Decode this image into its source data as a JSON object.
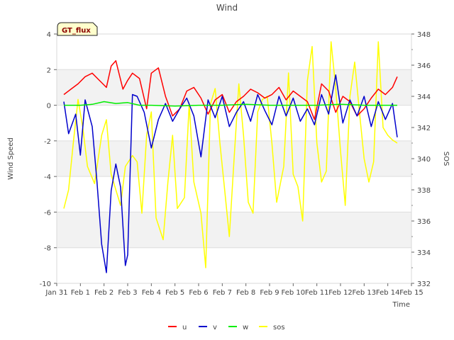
{
  "chart_data": {
    "type": "line",
    "title": "Wind",
    "badge": "GT_flux",
    "xlabel": "Time",
    "ylabel": "Wind Speed",
    "y2label": "SOS",
    "x_ticks": [
      "Jan 31",
      "Feb 1",
      "Feb 2",
      "Feb 3",
      "Feb 4",
      "Feb 5",
      "Feb 6",
      "Feb 7",
      "Feb 8",
      "Feb 9",
      "Feb 10",
      "Feb 11",
      "Feb 12",
      "Feb 13",
      "Feb 14",
      "Feb 15"
    ],
    "xlim": [
      0,
      15
    ],
    "ylim": [
      -10,
      4
    ],
    "y_ticks": [
      "-10",
      "-8",
      "-6",
      "-4",
      "-2",
      "0",
      "2",
      "4"
    ],
    "y2lim": [
      332,
      348
    ],
    "y2_ticks": [
      "332",
      "334",
      "336",
      "338",
      "340",
      "342",
      "344",
      "346",
      "348"
    ],
    "colors": {
      "u": "#ff0000",
      "v": "#0000cc",
      "w": "#00ee00",
      "sos": "#ffff00"
    },
    "legend": [
      "u",
      "v",
      "w",
      "sos"
    ],
    "series": [
      {
        "name": "u",
        "axis": "left",
        "x": [
          0.3,
          0.6,
          0.9,
          1.2,
          1.5,
          1.8,
          2.1,
          2.3,
          2.5,
          2.8,
          3.0,
          3.2,
          3.5,
          3.8,
          4.0,
          4.3,
          4.6,
          4.9,
          5.2,
          5.5,
          5.8,
          6.1,
          6.4,
          6.7,
          7.0,
          7.3,
          7.6,
          7.9,
          8.2,
          8.5,
          8.8,
          9.1,
          9.4,
          9.7,
          10.0,
          10.3,
          10.6,
          10.9,
          11.2,
          11.5,
          11.8,
          12.1,
          12.4,
          12.7,
          13.0,
          13.3,
          13.6,
          13.9,
          14.2,
          14.4
        ],
        "values": [
          0.6,
          0.9,
          1.2,
          1.6,
          1.8,
          1.4,
          1.0,
          2.2,
          2.5,
          0.9,
          1.4,
          1.8,
          1.5,
          -0.2,
          1.8,
          2.1,
          0.5,
          -0.6,
          -0.2,
          0.8,
          1.0,
          0.4,
          -0.5,
          0.3,
          0.6,
          -0.4,
          0.2,
          0.5,
          0.9,
          0.7,
          0.4,
          0.6,
          1.0,
          0.3,
          0.8,
          0.5,
          0.2,
          -0.8,
          1.2,
          0.8,
          -0.4,
          0.5,
          0.2,
          -0.6,
          -0.2,
          0.4,
          0.9,
          0.6,
          1.0,
          1.6
        ]
      },
      {
        "name": "v",
        "axis": "left",
        "x": [
          0.3,
          0.5,
          0.8,
          1.0,
          1.2,
          1.5,
          1.7,
          1.9,
          2.1,
          2.3,
          2.5,
          2.7,
          2.9,
          3.0,
          3.2,
          3.4,
          3.7,
          4.0,
          4.3,
          4.6,
          4.9,
          5.2,
          5.5,
          5.8,
          6.1,
          6.4,
          6.7,
          7.0,
          7.3,
          7.6,
          7.9,
          8.2,
          8.5,
          8.8,
          9.1,
          9.4,
          9.7,
          10.0,
          10.3,
          10.6,
          10.9,
          11.2,
          11.5,
          11.8,
          12.1,
          12.4,
          12.7,
          13.0,
          13.3,
          13.6,
          13.9,
          14.2,
          14.4
        ],
        "values": [
          0.2,
          -1.6,
          -0.5,
          -2.8,
          0.3,
          -1.2,
          -4.3,
          -7.8,
          -9.4,
          -4.8,
          -3.3,
          -4.6,
          -9.0,
          -8.4,
          0.6,
          0.5,
          -0.4,
          -2.4,
          -0.8,
          0.1,
          -0.9,
          -0.2,
          0.4,
          -0.6,
          -2.9,
          0.3,
          -0.7,
          0.5,
          -1.2,
          -0.4,
          0.2,
          -0.9,
          0.6,
          -0.3,
          -1.1,
          0.5,
          -0.6,
          0.4,
          -0.9,
          -0.2,
          -1.1,
          0.6,
          -0.5,
          1.7,
          -1.0,
          0.3,
          -0.6,
          0.5,
          -1.2,
          0.2,
          -0.8,
          0.1,
          -1.8
        ]
      },
      {
        "name": "w",
        "axis": "left",
        "x": [
          0.3,
          1.0,
          1.5,
          2.0,
          2.5,
          3.0,
          3.5,
          4.0,
          5.0,
          6.0,
          7.0,
          8.0,
          9.0,
          10.0,
          11.0,
          12.0,
          13.0,
          14.0,
          14.4
        ],
        "values": [
          0.0,
          0.0,
          0.05,
          0.2,
          0.1,
          0.15,
          0.0,
          0.0,
          -0.05,
          0.0,
          0.0,
          0.05,
          0.0,
          0.0,
          0.0,
          0.05,
          0.0,
          0.0,
          0.0
        ]
      },
      {
        "name": "sos",
        "axis": "right",
        "x": [
          0.3,
          0.5,
          0.7,
          0.9,
          1.1,
          1.3,
          1.6,
          1.9,
          2.1,
          2.3,
          2.5,
          2.7,
          2.9,
          3.2,
          3.4,
          3.6,
          3.8,
          4.0,
          4.2,
          4.5,
          4.7,
          4.9,
          5.1,
          5.4,
          5.6,
          5.8,
          6.1,
          6.3,
          6.5,
          6.7,
          6.9,
          7.1,
          7.3,
          7.5,
          7.7,
          7.9,
          8.1,
          8.3,
          8.5,
          8.7,
          8.9,
          9.1,
          9.3,
          9.6,
          9.8,
          10.0,
          10.2,
          10.4,
          10.6,
          10.8,
          11.0,
          11.2,
          11.4,
          11.6,
          11.8,
          12.0,
          12.2,
          12.4,
          12.6,
          12.8,
          13.0,
          13.2,
          13.4,
          13.6,
          13.8,
          14.0,
          14.2,
          14.4
        ],
        "values": [
          336.8,
          338.0,
          341.0,
          343.8,
          342.0,
          339.5,
          338.4,
          341.5,
          342.5,
          339.0,
          338.0,
          337.0,
          339.5,
          340.2,
          339.8,
          336.5,
          341.5,
          343.0,
          336.2,
          334.8,
          338.5,
          341.5,
          336.8,
          337.5,
          343.5,
          338.5,
          336.5,
          333.0,
          343.5,
          344.5,
          341.0,
          338.0,
          335.0,
          340.0,
          344.8,
          341.5,
          337.2,
          336.5,
          343.0,
          343.8,
          344.0,
          341.0,
          337.2,
          339.5,
          345.5,
          339.0,
          338.2,
          336.0,
          345.0,
          347.2,
          341.0,
          338.5,
          339.2,
          347.5,
          344.5,
          340.5,
          337.0,
          344.0,
          346.2,
          343.0,
          340.0,
          338.5,
          339.8,
          347.5,
          342.0,
          341.5,
          341.2,
          341.0
        ]
      }
    ]
  }
}
